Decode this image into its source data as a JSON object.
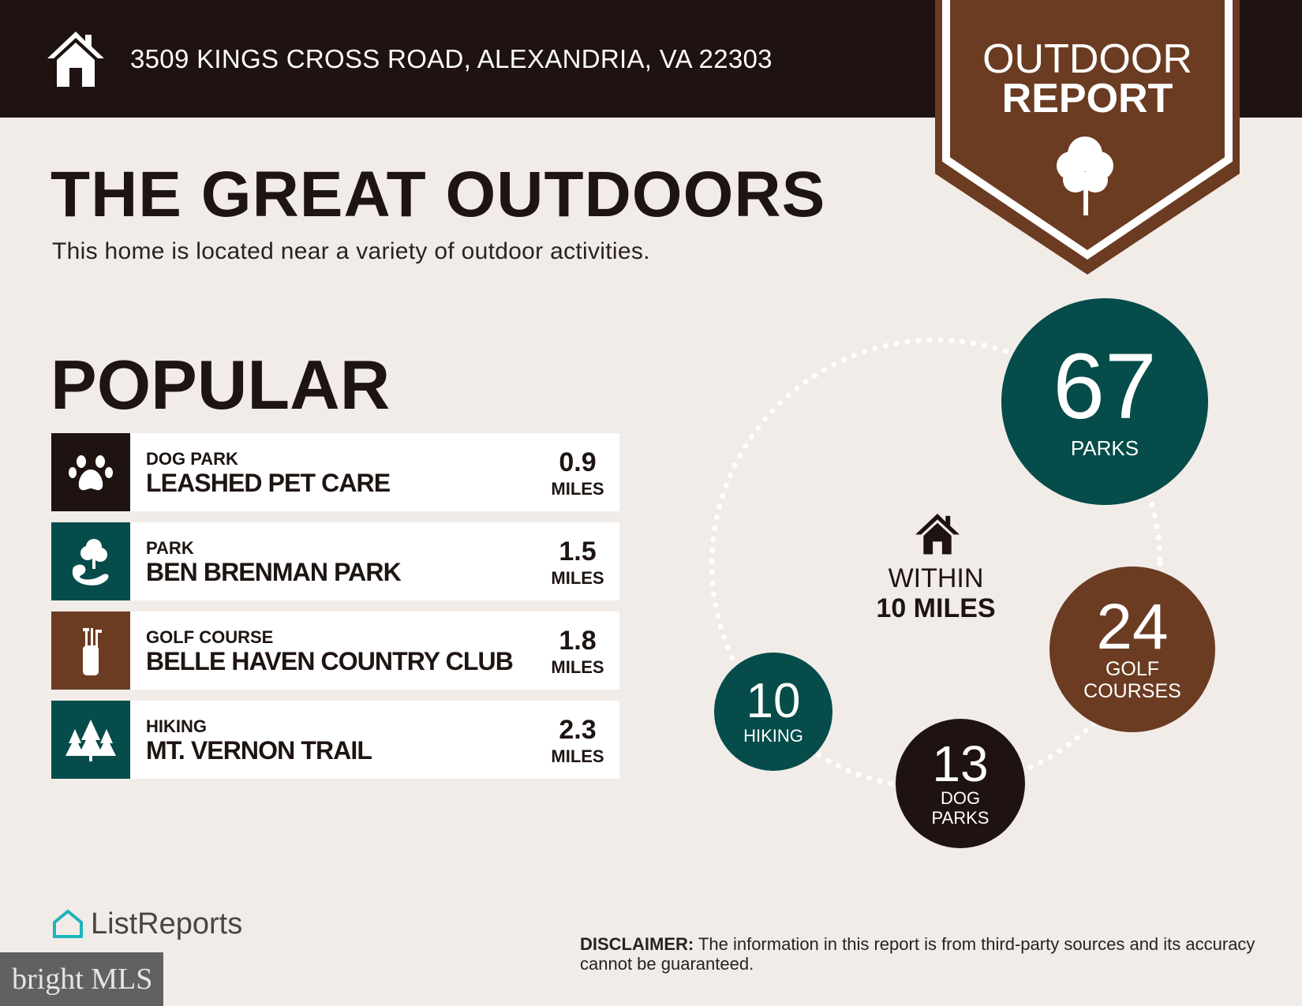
{
  "header": {
    "address": "3509 KINGS CROSS ROAD, ALEXANDRIA, VA 22303",
    "home_icon": "house-icon"
  },
  "badge": {
    "line1": "OUTDOOR",
    "line2": "REPORT",
    "icon": "tree-icon",
    "color": "#6b3c22"
  },
  "title": "THE GREAT OUTDOORS",
  "subtitle": "This home is located near a variety of outdoor activities.",
  "popular": {
    "heading": "POPULAR",
    "items": [
      {
        "category": "DOG PARK",
        "name": "LEASHED PET CARE",
        "distance": "0.9",
        "unit": "MILES",
        "icon": "paw-icon",
        "color": "#1e1310"
      },
      {
        "category": "PARK",
        "name": "BEN BRENMAN PARK",
        "distance": "1.5",
        "unit": "MILES",
        "icon": "park-icon",
        "color": "#064c4a"
      },
      {
        "category": "GOLF COURSE",
        "name": "BELLE HAVEN COUNTRY CLUB",
        "distance": "1.8",
        "unit": "MILES",
        "icon": "golf-bag-icon",
        "color": "#6b3c22"
      },
      {
        "category": "HIKING",
        "name": "MT. VERNON TRAIL",
        "distance": "2.3",
        "unit": "MILES",
        "icon": "pine-trees-icon",
        "color": "#064c4a"
      }
    ]
  },
  "within": {
    "line1": "WITHIN",
    "line2": "10 MILES"
  },
  "stats": [
    {
      "count": "67",
      "label": "PARKS",
      "color": "#064c4a"
    },
    {
      "count": "24",
      "label": "GOLF COURSES",
      "color": "#6b3c22"
    },
    {
      "count": "13",
      "label": "DOG PARKS",
      "color": "#1e1310"
    },
    {
      "count": "10",
      "label": "HIKING",
      "color": "#064c4a"
    }
  ],
  "footer": {
    "logo": "ListReports",
    "mls_logo": "bright MLS",
    "disclaimer_label": "DISCLAIMER:",
    "disclaimer": " The information in this report is from third-party sources and its accuracy cannot be guaranteed."
  }
}
